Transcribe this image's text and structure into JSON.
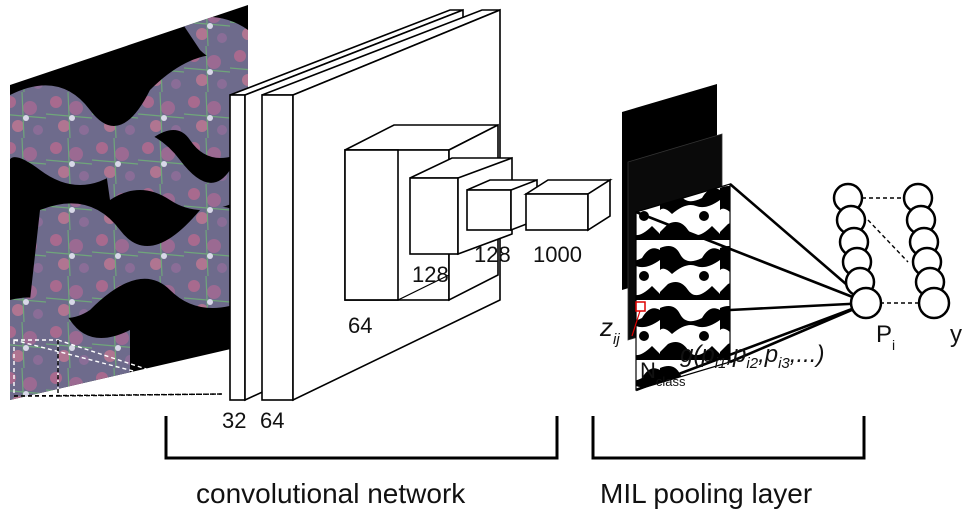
{
  "input_sizes": {
    "first": "32",
    "second": "64"
  },
  "conv_layers": [
    {
      "label": "64"
    },
    {
      "label": "128"
    },
    {
      "label": "128"
    },
    {
      "label": "1000"
    }
  ],
  "mil": {
    "z": "z",
    "z_sub": "ij",
    "n": "N",
    "n_sub": "class",
    "g_formula": {
      "g": "g(p",
      "s1": "i1",
      "c1": ",p",
      "s2": "i2",
      "c2": ",p",
      "s3": "i3",
      "end": ",...)"
    },
    "p": "P",
    "p_sub": "i",
    "y": "y"
  },
  "sections": {
    "conv_label": "convolutional network",
    "mil_label": "MIL pooling layer"
  }
}
